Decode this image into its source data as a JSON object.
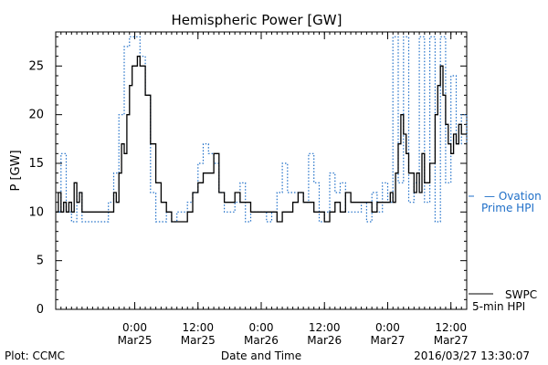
{
  "chart_data": {
    "type": "line",
    "title": "Hemispheric Power [GW]",
    "xlabel": "Date and Time",
    "ylabel": "P [GW]",
    "ylim": [
      0,
      28.5
    ],
    "yticks": [
      0,
      5,
      10,
      15,
      20,
      25
    ],
    "xlim": [
      "2016-03-24 09:00",
      "2016-03-27 15:00"
    ],
    "xticks": [
      {
        "x": "2016-03-25 00:00",
        "time": "0:00",
        "date": "Mar25"
      },
      {
        "x": "2016-03-25 12:00",
        "time": "12:00",
        "date": "Mar25"
      },
      {
        "x": "2016-03-26 00:00",
        "time": "0:00",
        "date": "Mar26"
      },
      {
        "x": "2016-03-26 12:00",
        "time": "12:00",
        "date": "Mar26"
      },
      {
        "x": "2016-03-27 00:00",
        "time": "0:00",
        "date": "Mar27"
      },
      {
        "x": "2016-03-27 12:00",
        "time": "12:00",
        "date": "Mar27"
      }
    ],
    "grid": false,
    "legend_position": "right",
    "series": [
      {
        "name": "SWPC 5-min HPI",
        "color": "#000000",
        "style": "solid",
        "points": [
          [
            "2016-03-24 09:00",
            10
          ],
          [
            "2016-03-24 09:30",
            12
          ],
          [
            "2016-03-24 10:00",
            10
          ],
          [
            "2016-03-24 10:30",
            11
          ],
          [
            "2016-03-24 11:00",
            10
          ],
          [
            "2016-03-24 11:30",
            11
          ],
          [
            "2016-03-24 12:00",
            10
          ],
          [
            "2016-03-24 12:30",
            13
          ],
          [
            "2016-03-24 13:00",
            11
          ],
          [
            "2016-03-24 13:30",
            12
          ],
          [
            "2016-03-24 14:00",
            10
          ],
          [
            "2016-03-24 16:00",
            10
          ],
          [
            "2016-03-24 18:00",
            10
          ],
          [
            "2016-03-24 19:30",
            10
          ],
          [
            "2016-03-24 20:00",
            12
          ],
          [
            "2016-03-24 20:30",
            11
          ],
          [
            "2016-03-24 21:00",
            14
          ],
          [
            "2016-03-24 21:30",
            17
          ],
          [
            "2016-03-24 22:00",
            16
          ],
          [
            "2016-03-24 22:30",
            20
          ],
          [
            "2016-03-24 23:00",
            23
          ],
          [
            "2016-03-24 23:30",
            25
          ],
          [
            "2016-03-25 00:30",
            26
          ],
          [
            "2016-03-25 01:00",
            25
          ],
          [
            "2016-03-25 02:00",
            22
          ],
          [
            "2016-03-25 03:00",
            17
          ],
          [
            "2016-03-25 04:00",
            13
          ],
          [
            "2016-03-25 05:00",
            11
          ],
          [
            "2016-03-25 06:00",
            10
          ],
          [
            "2016-03-25 07:00",
            9
          ],
          [
            "2016-03-25 08:00",
            9
          ],
          [
            "2016-03-25 09:00",
            9
          ],
          [
            "2016-03-25 10:00",
            10
          ],
          [
            "2016-03-25 11:00",
            12
          ],
          [
            "2016-03-25 12:00",
            13
          ],
          [
            "2016-03-25 13:00",
            14
          ],
          [
            "2016-03-25 14:00",
            14
          ],
          [
            "2016-03-25 15:00",
            16
          ],
          [
            "2016-03-25 16:00",
            12
          ],
          [
            "2016-03-25 17:00",
            11
          ],
          [
            "2016-03-25 18:00",
            11
          ],
          [
            "2016-03-25 19:00",
            12
          ],
          [
            "2016-03-25 20:00",
            11
          ],
          [
            "2016-03-25 21:00",
            11
          ],
          [
            "2016-03-25 22:00",
            10
          ],
          [
            "2016-03-26 00:00",
            10
          ],
          [
            "2016-03-26 02:00",
            10
          ],
          [
            "2016-03-26 03:00",
            9
          ],
          [
            "2016-03-26 04:00",
            10
          ],
          [
            "2016-03-26 05:00",
            10
          ],
          [
            "2016-03-26 06:00",
            11
          ],
          [
            "2016-03-26 07:00",
            12
          ],
          [
            "2016-03-26 08:00",
            11
          ],
          [
            "2016-03-26 09:00",
            11
          ],
          [
            "2016-03-26 10:00",
            10
          ],
          [
            "2016-03-26 11:00",
            10
          ],
          [
            "2016-03-26 12:00",
            9
          ],
          [
            "2016-03-26 13:00",
            10
          ],
          [
            "2016-03-26 14:00",
            11
          ],
          [
            "2016-03-26 15:00",
            10
          ],
          [
            "2016-03-26 16:00",
            12
          ],
          [
            "2016-03-26 17:00",
            11
          ],
          [
            "2016-03-26 18:00",
            11
          ],
          [
            "2016-03-26 20:00",
            11
          ],
          [
            "2016-03-26 21:00",
            10
          ],
          [
            "2016-03-26 22:00",
            11
          ],
          [
            "2016-03-26 23:00",
            11
          ],
          [
            "2016-03-27 00:00",
            11
          ],
          [
            "2016-03-27 00:30",
            12
          ],
          [
            "2016-03-27 01:00",
            11
          ],
          [
            "2016-03-27 01:30",
            14
          ],
          [
            "2016-03-27 02:00",
            17
          ],
          [
            "2016-03-27 02:30",
            20
          ],
          [
            "2016-03-27 03:00",
            18
          ],
          [
            "2016-03-27 03:30",
            16
          ],
          [
            "2016-03-27 04:00",
            14
          ],
          [
            "2016-03-27 05:00",
            12
          ],
          [
            "2016-03-27 05:30",
            14
          ],
          [
            "2016-03-27 06:00",
            12
          ],
          [
            "2016-03-27 06:30",
            16
          ],
          [
            "2016-03-27 07:00",
            13
          ],
          [
            "2016-03-27 08:00",
            15
          ],
          [
            "2016-03-27 09:00",
            20
          ],
          [
            "2016-03-27 09:30",
            23
          ],
          [
            "2016-03-27 10:00",
            25
          ],
          [
            "2016-03-27 10:30",
            22
          ],
          [
            "2016-03-27 11:00",
            19
          ],
          [
            "2016-03-27 11:30",
            17
          ],
          [
            "2016-03-27 12:00",
            16
          ],
          [
            "2016-03-27 12:30",
            18
          ],
          [
            "2016-03-27 13:00",
            17
          ],
          [
            "2016-03-27 13:30",
            19
          ],
          [
            "2016-03-27 14:00",
            18
          ],
          [
            "2016-03-27 15:00",
            18
          ]
        ]
      },
      {
        "name": "Ovation Prime HPI",
        "color": "#1f6fc8",
        "style": "dotted",
        "points": [
          [
            "2016-03-24 09:00",
            10
          ],
          [
            "2016-03-24 10:00",
            16
          ],
          [
            "2016-03-24 11:00",
            10
          ],
          [
            "2016-03-24 12:00",
            9
          ],
          [
            "2016-03-24 13:00",
            12
          ],
          [
            "2016-03-24 14:00",
            9
          ],
          [
            "2016-03-24 18:00",
            9
          ],
          [
            "2016-03-24 19:00",
            11
          ],
          [
            "2016-03-24 20:00",
            14
          ],
          [
            "2016-03-24 21:00",
            20
          ],
          [
            "2016-03-24 22:00",
            27
          ],
          [
            "2016-03-24 23:00",
            28
          ],
          [
            "2016-03-25 00:00",
            28
          ],
          [
            "2016-03-25 01:00",
            26
          ],
          [
            "2016-03-25 02:00",
            22
          ],
          [
            "2016-03-25 03:00",
            12
          ],
          [
            "2016-03-25 04:00",
            9
          ],
          [
            "2016-03-25 06:00",
            10
          ],
          [
            "2016-03-25 07:00",
            9
          ],
          [
            "2016-03-25 08:00",
            10
          ],
          [
            "2016-03-25 09:00",
            10
          ],
          [
            "2016-03-25 10:00",
            11
          ],
          [
            "2016-03-25 11:00",
            12
          ],
          [
            "2016-03-25 12:00",
            15
          ],
          [
            "2016-03-25 13:00",
            17
          ],
          [
            "2016-03-25 14:00",
            16
          ],
          [
            "2016-03-25 15:00",
            15
          ],
          [
            "2016-03-25 16:00",
            12
          ],
          [
            "2016-03-25 17:00",
            10
          ],
          [
            "2016-03-25 19:00",
            11
          ],
          [
            "2016-03-25 20:00",
            13
          ],
          [
            "2016-03-25 21:00",
            9
          ],
          [
            "2016-03-25 22:00",
            10
          ],
          [
            "2016-03-26 00:00",
            10
          ],
          [
            "2016-03-26 01:00",
            9
          ],
          [
            "2016-03-26 02:00",
            10
          ],
          [
            "2016-03-26 03:00",
            12
          ],
          [
            "2016-03-26 04:00",
            15
          ],
          [
            "2016-03-26 05:00",
            12
          ],
          [
            "2016-03-26 07:00",
            12
          ],
          [
            "2016-03-26 08:00",
            11
          ],
          [
            "2016-03-26 09:00",
            16
          ],
          [
            "2016-03-26 10:00",
            13
          ],
          [
            "2016-03-26 11:00",
            9
          ],
          [
            "2016-03-26 12:00",
            10
          ],
          [
            "2016-03-26 13:00",
            14
          ],
          [
            "2016-03-26 14:00",
            12
          ],
          [
            "2016-03-26 15:00",
            13
          ],
          [
            "2016-03-26 16:00",
            10
          ],
          [
            "2016-03-26 18:00",
            10
          ],
          [
            "2016-03-26 19:00",
            11
          ],
          [
            "2016-03-26 20:00",
            9
          ],
          [
            "2016-03-26 21:00",
            12
          ],
          [
            "2016-03-26 22:00",
            10
          ],
          [
            "2016-03-26 23:00",
            13
          ],
          [
            "2016-03-27 00:00",
            11
          ],
          [
            "2016-03-27 01:00",
            28
          ],
          [
            "2016-03-27 02:00",
            13
          ],
          [
            "2016-03-27 03:00",
            28
          ],
          [
            "2016-03-27 04:00",
            11
          ],
          [
            "2016-03-27 05:00",
            13
          ],
          [
            "2016-03-27 06:00",
            28
          ],
          [
            "2016-03-27 07:00",
            11
          ],
          [
            "2016-03-27 08:00",
            28
          ],
          [
            "2016-03-27 09:00",
            9
          ],
          [
            "2016-03-27 10:00",
            28
          ],
          [
            "2016-03-27 11:00",
            13
          ],
          [
            "2016-03-27 12:00",
            24
          ],
          [
            "2016-03-27 13:00",
            17
          ],
          [
            "2016-03-27 14:00",
            20
          ],
          [
            "2016-03-27 15:00",
            17
          ]
        ]
      }
    ]
  },
  "legend": {
    "ovation_line1": "— Ovation",
    "ovation_line2": "Prime HPI",
    "swpc_line1": "SWPC",
    "swpc_line2": "5-min HPI"
  },
  "footer": {
    "plot_label": "Plot: CCMC",
    "x_label": "Date and Time",
    "timestamp": "2016/03/27 13:30:07"
  }
}
